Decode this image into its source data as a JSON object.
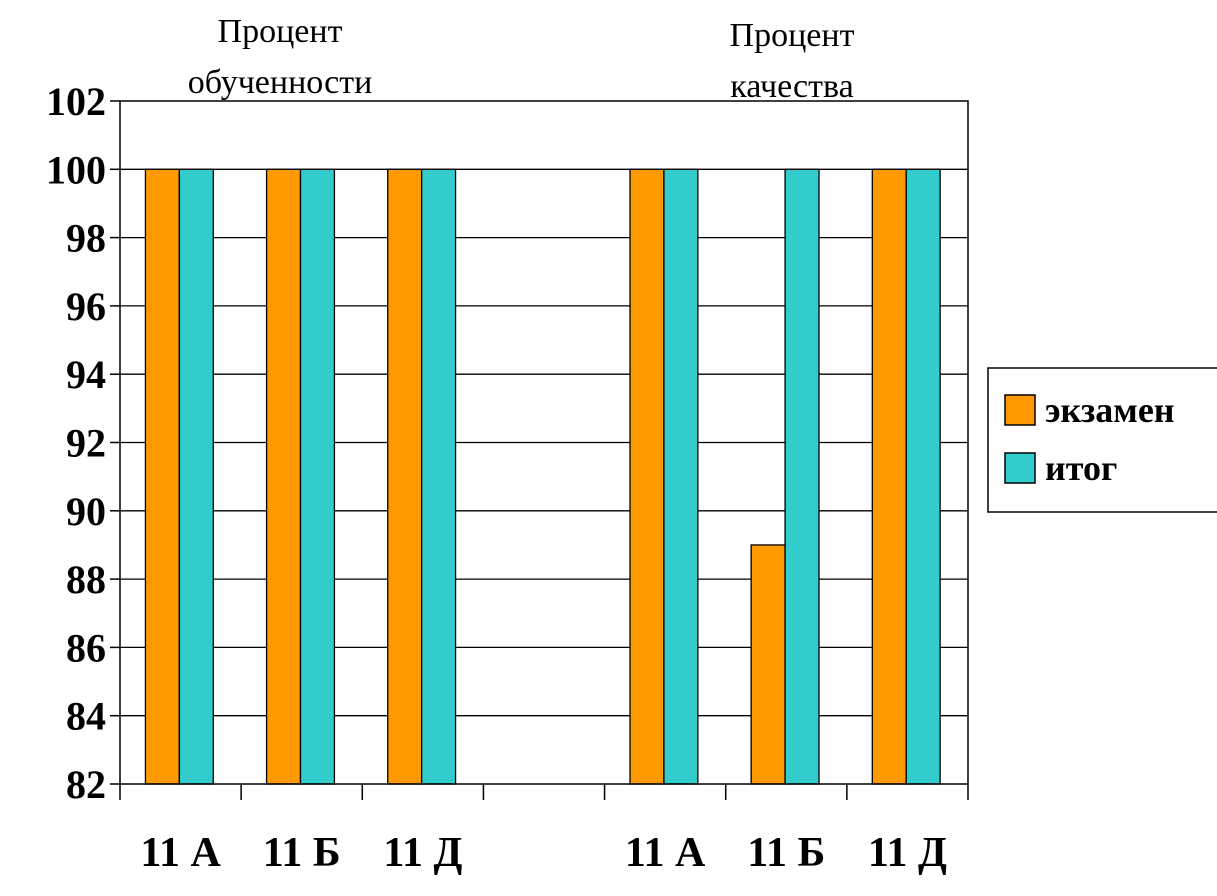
{
  "chart_data": {
    "type": "bar",
    "group_titles": [
      {
        "line1": "Процент",
        "line2": "обученности"
      },
      {
        "line1": "Процент",
        "line2": "качества"
      }
    ],
    "categories": [
      "11 А",
      "11 Б",
      "11 Д",
      "",
      "11 А",
      "11 Б",
      "11 Д"
    ],
    "series": [
      {
        "name": "экзамен",
        "color": "#FF9900",
        "values": [
          100,
          100,
          100,
          null,
          100,
          89,
          100
        ]
      },
      {
        "name": "итог",
        "color": "#33CCCC",
        "values": [
          100,
          100,
          100,
          null,
          100,
          100,
          100
        ]
      }
    ],
    "ylim": [
      82,
      102
    ],
    "yticks": [
      82,
      84,
      86,
      88,
      90,
      92,
      94,
      96,
      98,
      100,
      102
    ],
    "grid": true,
    "legend_position": "right"
  }
}
